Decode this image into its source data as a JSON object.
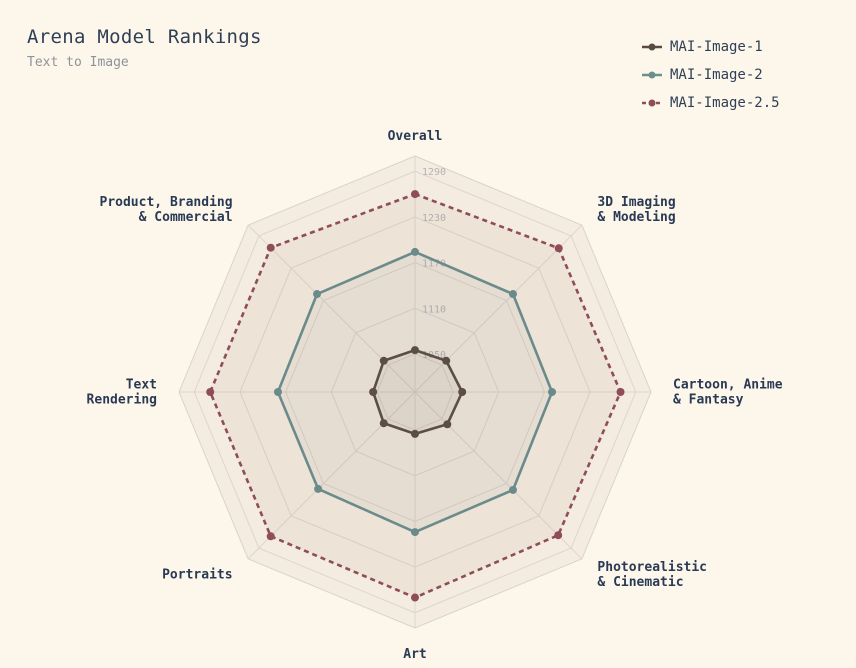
{
  "header": {
    "title": "Arena Model Rankings",
    "subtitle": "Text to Image"
  },
  "chart_data": {
    "type": "radar",
    "axes": [
      [
        "Overall"
      ],
      [
        "3D Imaging",
        "& Modeling"
      ],
      [
        "Cartoon, Anime",
        "& Fantasy"
      ],
      [
        "Photorealistic",
        "& Cinematic"
      ],
      [
        "Art"
      ],
      [
        "Portraits"
      ],
      [
        "Text",
        "Rendering"
      ],
      [
        "Product, Branding",
        "& Commercial"
      ]
    ],
    "range": [
      1000,
      1310
    ],
    "ticks": [
      1050,
      1110,
      1170,
      1230,
      1290
    ],
    "series": [
      {
        "name": "MAI-Image-1",
        "color": "#5a4a40",
        "dashed": false,
        "values": [
          1055,
          1058,
          1062,
          1060,
          1055,
          1058,
          1055,
          1058
        ]
      },
      {
        "name": "MAI-Image-2",
        "color": "#6a8f8f",
        "dashed": false,
        "values": [
          1184,
          1182,
          1180,
          1182,
          1184,
          1180,
          1180,
          1182
        ]
      },
      {
        "name": "MAI-Image-2.5",
        "color": "#8e4d58",
        "dashed": true,
        "values": [
          1260,
          1267,
          1270,
          1266,
          1270,
          1268,
          1269,
          1268
        ]
      }
    ]
  }
}
